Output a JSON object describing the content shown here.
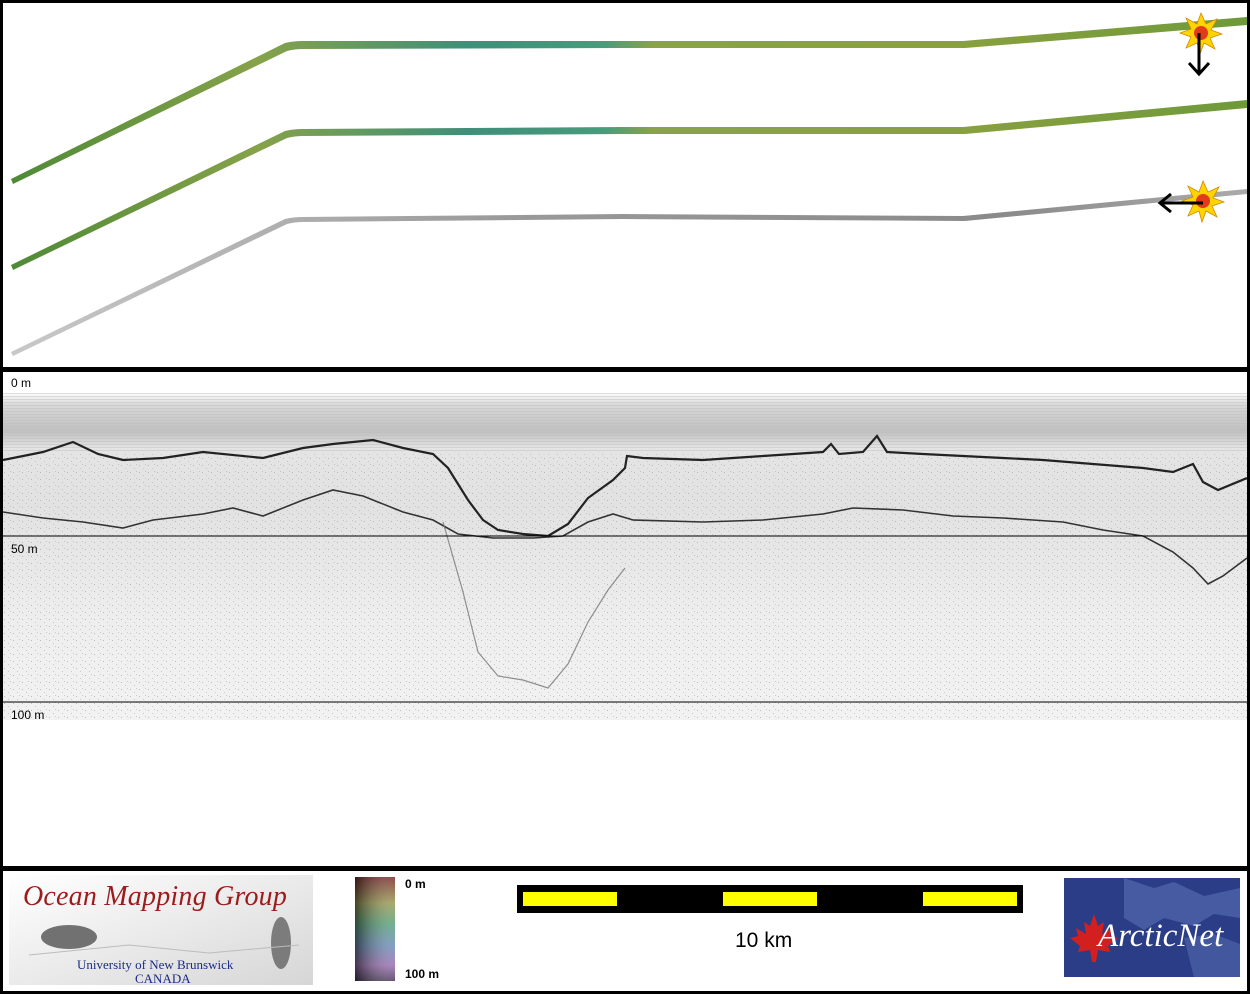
{
  "profile": {
    "depth_labels": {
      "top": "0 m",
      "mid": "50 m",
      "bottom": "100 m"
    }
  },
  "footer": {
    "logo_title": "Ocean Mapping Group",
    "logo_university": "University of New Brunswick",
    "logo_country": "CANADA",
    "colorbar_top": "0 m",
    "colorbar_bottom": "100 m",
    "scale_label": "10 km",
    "partner_logo_text": "ArcticNet"
  },
  "colors": {
    "scale_bar_fill": "#ffff00",
    "scale_bar_dark": "#000000",
    "swath_green": "#6f9a3a",
    "swath_teal": "#3f8f7a",
    "sun_yellow": "#ffd400",
    "sun_red": "#e23a1a",
    "arcticnet_bg": "#2a3d86",
    "maple_red": "#d21f1f"
  },
  "icons": {
    "sun_top": "sun-icon",
    "arrow_top": "arrow-down-icon",
    "sun_bottom": "sun-icon",
    "arrow_bottom": "arrow-left-icon"
  }
}
